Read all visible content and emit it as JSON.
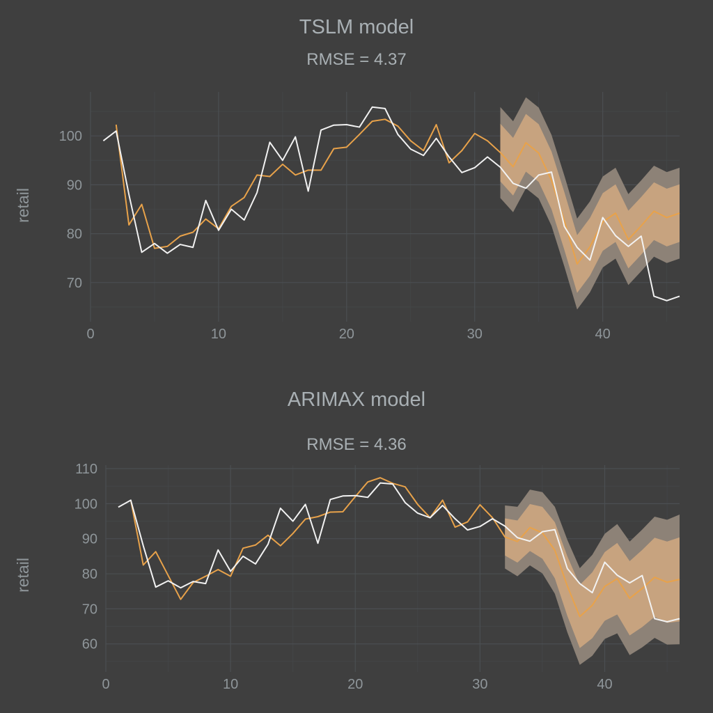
{
  "colors": {
    "background": "#3f3f3f",
    "actual": "#f2f2f2",
    "fitted": "#e8a24a",
    "band_outer": "#8d8277",
    "band_inner": "#c7a37f"
  },
  "chart_data": [
    {
      "type": "line",
      "title": "TSLM model",
      "subtitle": "RMSE = 4.37",
      "xlabel": "",
      "ylabel": "retail",
      "xlim": [
        0,
        46
      ],
      "ylim": [
        62,
        109
      ],
      "x_ticks": [
        0,
        10,
        20,
        30,
        40
      ],
      "y_ticks": [
        70,
        80,
        90,
        100
      ],
      "grid": true,
      "series": [
        {
          "x": [
            1,
            2,
            3,
            4,
            5,
            6,
            7,
            8,
            9,
            10,
            11,
            12,
            13,
            14,
            15,
            16,
            17,
            18,
            19,
            20,
            21,
            22,
            23,
            24,
            25,
            26,
            27,
            28,
            29,
            30,
            31,
            32,
            33,
            34,
            35,
            36,
            37,
            38,
            39,
            40,
            41,
            42,
            43,
            44,
            45,
            46
          ],
          "values": [
            99,
            101,
            88,
            76.2,
            78,
            76,
            77.8,
            77.2,
            86.8,
            80.7,
            85,
            82.8,
            88.4,
            98.7,
            95,
            99.8,
            88.7,
            101.2,
            102.2,
            102.3,
            101.8,
            105.9,
            105.6,
            100.3,
            97.3,
            96,
            99.5,
            95.7,
            92.5,
            93.5,
            95.7,
            93.6,
            90.3,
            89.3,
            92,
            92.6,
            81.5,
            77.2,
            74.6,
            83.3,
            79.6,
            77.4,
            79.5,
            67.2,
            66.3,
            67.2
          ],
          "color": "#f2f2f2"
        },
        {
          "x": [
            2,
            3,
            4,
            5,
            6,
            7,
            8,
            9,
            10,
            11,
            12,
            13,
            14,
            15,
            16,
            17,
            18,
            19,
            20,
            21,
            22,
            23,
            24,
            25,
            26,
            27,
            28,
            29,
            30,
            31,
            32,
            33,
            34,
            35,
            36,
            37,
            38,
            39,
            40,
            41,
            42,
            43,
            44,
            45,
            46
          ],
          "values": [
            102.3,
            81.8,
            86,
            77,
            77.4,
            79.5,
            80.3,
            83,
            81,
            85.6,
            87.4,
            92,
            91.7,
            94.2,
            92,
            93,
            93,
            97.4,
            97.7,
            100.3,
            103,
            103.4,
            102,
            99,
            97,
            102.3,
            94.5,
            97,
            100.5,
            99,
            96.6,
            93.7,
            98.6,
            96.5,
            90.9,
            82.6,
            73.8,
            77.3,
            82.4,
            84.2,
            78.8,
            81.6,
            84.6,
            83.3,
            84.2
          ],
          "color": "#e8a24a"
        }
      ],
      "band": {
        "x": [
          32,
          33,
          34,
          35,
          36,
          37,
          38,
          39,
          40,
          41,
          42,
          43,
          44,
          45,
          46
        ],
        "center": [
          96.6,
          93.7,
          98.6,
          96.5,
          90.9,
          82.6,
          73.8,
          77.3,
          82.4,
          84.2,
          78.8,
          81.6,
          84.6,
          83.3,
          84.2
        ],
        "inner_halfwidth": [
          5.9,
          5.9,
          5.9,
          5.9,
          5.9,
          5.9,
          5.9,
          5.9,
          5.9,
          5.9,
          5.9,
          5.9,
          5.9,
          5.9,
          5.9
        ],
        "outer_halfwidth": [
          9.3,
          9.3,
          9.3,
          9.3,
          9.3,
          9.3,
          9.3,
          9.3,
          9.3,
          9.3,
          9.3,
          9.3,
          9.3,
          9.3,
          9.3
        ]
      }
    },
    {
      "type": "line",
      "title": "ARIMAX model",
      "subtitle": "RMSE = 4.36",
      "xlabel": "",
      "ylabel": "retail",
      "xlim": [
        0,
        46
      ],
      "ylim": [
        52,
        111
      ],
      "x_ticks": [
        0,
        10,
        20,
        30,
        40
      ],
      "y_ticks": [
        60,
        70,
        80,
        90,
        100,
        110
      ],
      "grid": true,
      "series": [
        {
          "x": [
            1,
            2,
            3,
            4,
            5,
            6,
            7,
            8,
            9,
            10,
            11,
            12,
            13,
            14,
            15,
            16,
            17,
            18,
            19,
            20,
            21,
            22,
            23,
            24,
            25,
            26,
            27,
            28,
            29,
            30,
            31,
            32,
            33,
            34,
            35,
            36,
            37,
            38,
            39,
            40,
            41,
            42,
            43,
            44,
            45,
            46
          ],
          "values": [
            99,
            101,
            88,
            76.2,
            78,
            76,
            77.8,
            77.2,
            86.8,
            80.7,
            85,
            82.8,
            88.4,
            98.7,
            95,
            99.8,
            88.7,
            101.2,
            102.2,
            102.3,
            101.8,
            105.9,
            105.6,
            100.3,
            97.3,
            96,
            99.5,
            95.7,
            92.5,
            93.5,
            95.7,
            93.6,
            90.3,
            89.3,
            92,
            92.6,
            81.5,
            77.2,
            74.6,
            83.3,
            79.6,
            77.4,
            79.5,
            67.2,
            66.3,
            67.2
          ],
          "color": "#f2f2f2"
        },
        {
          "x": [
            2,
            3,
            4,
            5,
            6,
            7,
            8,
            9,
            10,
            11,
            12,
            13,
            14,
            15,
            16,
            17,
            18,
            19,
            20,
            21,
            22,
            23,
            24,
            25,
            26,
            27,
            28,
            29,
            30,
            31,
            32,
            33,
            34,
            35,
            36,
            37,
            38,
            39,
            40,
            41,
            42,
            43,
            44,
            45,
            46
          ],
          "values": [
            101,
            82.5,
            86.3,
            79.5,
            72.7,
            77.5,
            79.3,
            81.2,
            79.3,
            87.3,
            88.2,
            91,
            88,
            91.5,
            95.6,
            96.3,
            97.6,
            97.7,
            102,
            106.2,
            107.4,
            105.8,
            104.8,
            99.8,
            96,
            101,
            93.3,
            94.8,
            99.7,
            96,
            90.5,
            89.2,
            93.2,
            91.7,
            86.7,
            76.5,
            67.8,
            71,
            76.4,
            78.6,
            73,
            75.8,
            79,
            77.6,
            78.4
          ],
          "color": "#e8a24a"
        }
      ],
      "band": {
        "x": [
          32,
          33,
          34,
          35,
          36,
          37,
          38,
          39,
          40,
          41,
          42,
          43,
          44,
          45,
          46
        ],
        "center": [
          90.5,
          89.2,
          93.2,
          91.7,
          86.7,
          76.5,
          67.8,
          71,
          76.4,
          78.6,
          73,
          75.8,
          79,
          77.6,
          78.4
        ],
        "inner_halfwidth": [
          5.3,
          6.0,
          6.7,
          7.4,
          8.0,
          8.5,
          9.0,
          9.4,
          9.8,
          10.2,
          10.6,
          11.0,
          11.3,
          11.6,
          12.0
        ],
        "outer_halfwidth": [
          9.0,
          9.9,
          10.8,
          11.6,
          12.4,
          13.2,
          13.8,
          14.4,
          15.0,
          15.6,
          16.2,
          16.8,
          17.3,
          17.8,
          18.5
        ]
      }
    }
  ]
}
